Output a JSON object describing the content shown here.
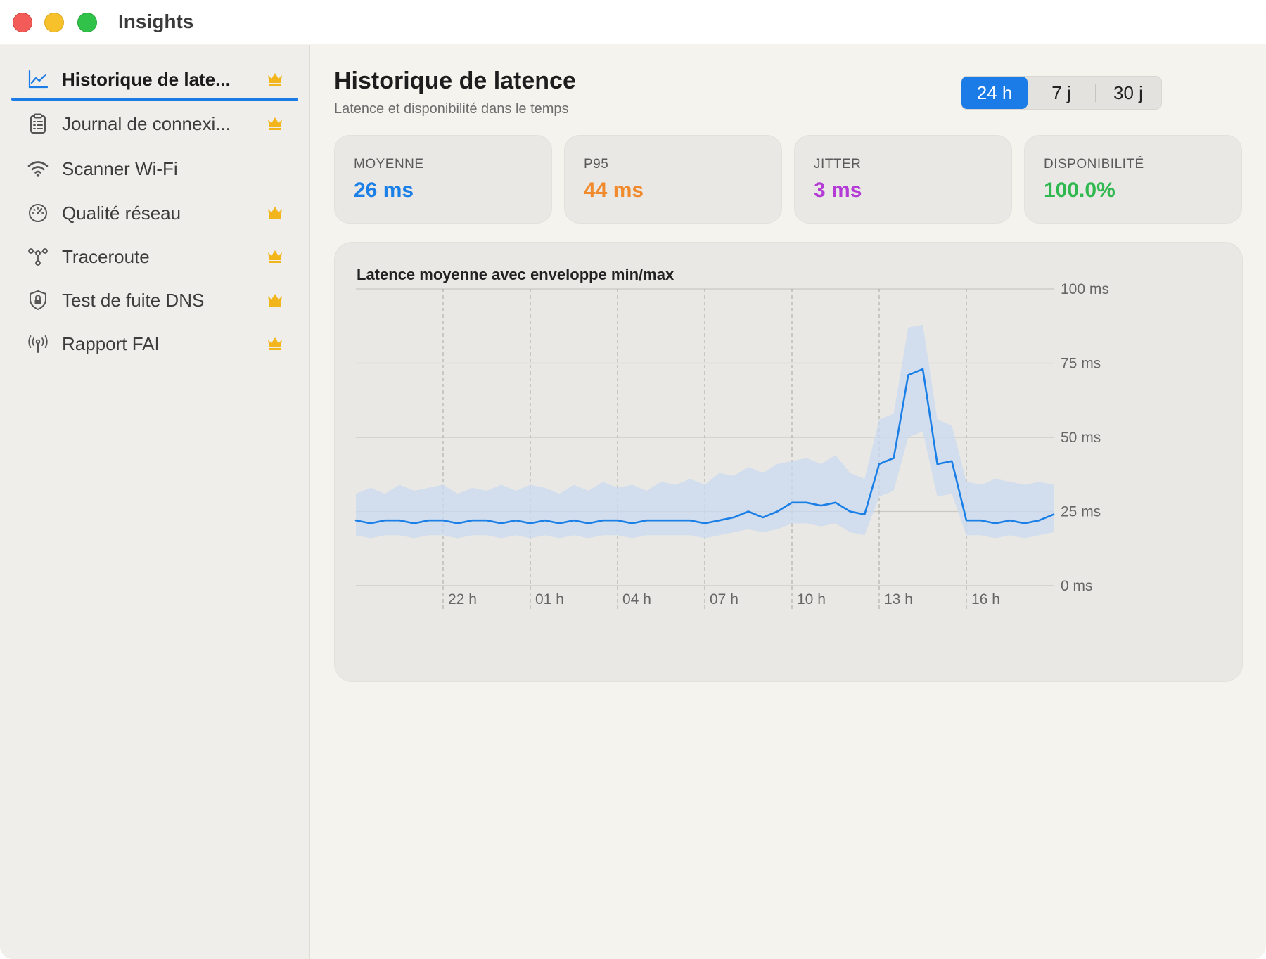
{
  "window": {
    "title": "Insights"
  },
  "sidebar": {
    "items": [
      {
        "label": "Historique de late...",
        "icon": "line-chart-icon",
        "premium": true,
        "active": true
      },
      {
        "label": "Journal de connexi...",
        "icon": "clipboard-list-icon",
        "premium": true,
        "active": false
      },
      {
        "label": "Scanner Wi-Fi",
        "icon": "wifi-icon",
        "premium": false,
        "active": false
      },
      {
        "label": "Qualité réseau",
        "icon": "gauge-icon",
        "premium": true,
        "active": false
      },
      {
        "label": "Traceroute",
        "icon": "network-nodes-icon",
        "premium": true,
        "active": false
      },
      {
        "label": "Test de fuite DNS",
        "icon": "lock-shield-icon",
        "premium": true,
        "active": false
      },
      {
        "label": "Rapport FAI",
        "icon": "antenna-icon",
        "premium": true,
        "active": false
      }
    ],
    "premium_icon": "crown-icon"
  },
  "header": {
    "title": "Historique de latence",
    "subtitle": "Latence et disponibilité dans le temps"
  },
  "range": {
    "options": [
      "24 h",
      "7 j",
      "30 j"
    ],
    "selected": "24 h"
  },
  "stats": [
    {
      "label": "MOYENNE",
      "value": "26 ms",
      "color": "#1a7fe6"
    },
    {
      "label": "P95",
      "value": "44 ms",
      "color": "#f08a2c"
    },
    {
      "label": "JITTER",
      "value": "3 ms",
      "color": "#b43bd6"
    },
    {
      "label": "DISPONIBILITÉ",
      "value": "100.0%",
      "color": "#2fb84f"
    }
  ],
  "colors": {
    "accent": "#1b7ce8",
    "line": "#1a7fe6",
    "band": "#c9daf0"
  },
  "chart_data": {
    "type": "area",
    "title": "Latence moyenne avec enveloppe min/max",
    "xlabel": "",
    "ylabel": "",
    "x_ticks": [
      "22 h",
      "01 h",
      "04 h",
      "07 h",
      "10 h",
      "13 h",
      "16 h"
    ],
    "y_ticks": [
      "0 ms",
      "25 ms",
      "50 ms",
      "75 ms",
      "100 ms"
    ],
    "ylim": [
      0,
      100
    ],
    "x_start_hour": 19,
    "x_span_hours": 24,
    "grid": true,
    "series": [
      {
        "name": "moyenne",
        "hours": [
          19,
          19.5,
          20,
          20.5,
          21,
          21.5,
          22,
          22.5,
          23,
          23.5,
          24,
          24.5,
          25,
          25.5,
          26,
          26.5,
          27,
          27.5,
          28,
          28.5,
          29,
          29.5,
          30,
          30.5,
          31,
          31.5,
          32,
          32.5,
          33,
          33.5,
          34,
          34.5,
          35,
          35.5,
          36,
          36.5,
          37,
          37.5,
          38,
          38.5,
          39,
          39.5,
          40,
          40.5,
          41,
          41.5,
          42,
          42.5,
          43
        ],
        "avg": [
          22,
          21,
          22,
          22,
          21,
          22,
          22,
          21,
          22,
          22,
          21,
          22,
          21,
          22,
          21,
          22,
          21,
          22,
          22,
          21,
          22,
          22,
          22,
          22,
          21,
          22,
          23,
          25,
          23,
          25,
          28,
          28,
          27,
          28,
          25,
          24,
          41,
          43,
          71,
          73,
          41,
          42,
          22,
          22,
          21,
          22,
          21,
          22,
          24
        ],
        "min": [
          17,
          16,
          17,
          17,
          16,
          17,
          17,
          16,
          17,
          17,
          16,
          17,
          16,
          17,
          16,
          17,
          16,
          17,
          17,
          16,
          17,
          17,
          17,
          17,
          16,
          17,
          18,
          19,
          18,
          19,
          21,
          21,
          20,
          21,
          18,
          17,
          30,
          32,
          50,
          52,
          30,
          31,
          17,
          17,
          16,
          17,
          16,
          17,
          18
        ],
        "max": [
          31,
          33,
          31,
          34,
          32,
          33,
          34,
          31,
          33,
          32,
          34,
          32,
          34,
          33,
          31,
          34,
          32,
          35,
          33,
          34,
          32,
          35,
          34,
          36,
          34,
          38,
          37,
          40,
          38,
          41,
          42,
          43,
          41,
          44,
          38,
          36,
          56,
          58,
          87,
          88,
          56,
          54,
          35,
          34,
          36,
          35,
          34,
          35,
          34
        ]
      }
    ]
  }
}
